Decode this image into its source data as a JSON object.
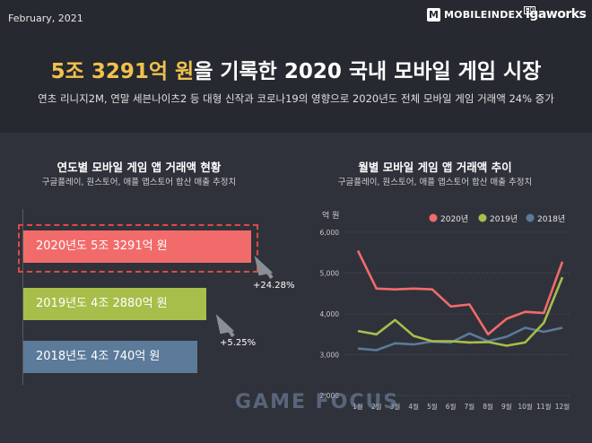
{
  "header": {
    "date": "February, 2021",
    "brand1_mark": "M",
    "brand1": "MOBILEINDEX",
    "brand1_badge": "HD",
    "brand2": "igaworks"
  },
  "headline": {
    "highlight": "5조 3291억 원",
    "rest": "을 기록한 2020 국내 모바일 게임 시장"
  },
  "subline": "연초 리니지2M, 연말 세븐나이츠2 등 대형 신작과 코로나19의 영향으로 2020년도 전체 모바일 게임 거래액 24% 증가",
  "left_panel": {
    "title": "연도별 모바일 게임 앱 거래액 현황",
    "subtitle": "구글플레이, 원스토어, 애플 앱스토어 합산 매출 추정치"
  },
  "right_panel": {
    "title": "월별 모바일 게임 앱 거래액 추이",
    "subtitle": "구글플레이, 원스토어, 애플 앱스토어 합산 매출 추정치"
  },
  "watermark": "GAME FOCUS",
  "chart_data": [
    {
      "type": "bar",
      "orientation": "horizontal",
      "categories": [
        "2020년도",
        "2019년도",
        "2018년도"
      ],
      "values": [
        53291,
        42880,
        40740
      ],
      "unit": "억 원",
      "bar_labels": [
        "2020년도 5조 3291억 원",
        "2019년도 4조 2880억 원",
        "2018년도 4조 740억 원"
      ],
      "colors": [
        "#f26b6b",
        "#a7be4a",
        "#5c7a99"
      ],
      "annotations": [
        "+24.28%",
        "+5.25%"
      ],
      "highlight": "2020년도"
    },
    {
      "type": "line",
      "ylabel": "억 원",
      "ylim": [
        2000,
        6000
      ],
      "yticks": [
        "2,000",
        "3,000",
        "4,000",
        "5,000",
        "6,000"
      ],
      "ytick_values": [
        2000,
        3000,
        4000,
        5000,
        6000
      ],
      "categories": [
        "1월",
        "2월",
        "3월",
        "4월",
        "5월",
        "6월",
        "7월",
        "8월",
        "9월",
        "10월",
        "11월",
        "12월"
      ],
      "legend_position": "top-right",
      "series": [
        {
          "name": "2020년",
          "color": "#f26b6b",
          "values": [
            5550,
            4620,
            4600,
            4620,
            4600,
            4180,
            4230,
            3500,
            3880,
            4050,
            4020,
            5280
          ]
        },
        {
          "name": "2019년",
          "color": "#a7be4a",
          "values": [
            3580,
            3500,
            3850,
            3460,
            3330,
            3330,
            3300,
            3310,
            3220,
            3300,
            3780,
            4900
          ]
        },
        {
          "name": "2018년",
          "color": "#5c7a99",
          "values": [
            3150,
            3110,
            3280,
            3250,
            3320,
            3300,
            3520,
            3330,
            3440,
            3660,
            3560,
            3660
          ]
        }
      ]
    }
  ]
}
